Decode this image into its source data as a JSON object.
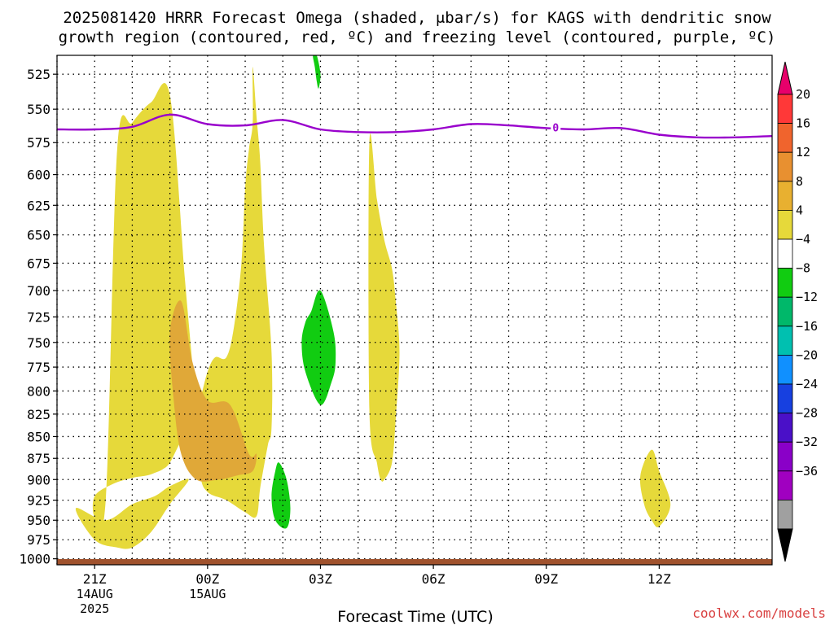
{
  "title_line1": "2025081420 HRRR Forecast Omega (shaded, μbar/s) for KAGS with dendritic snow",
  "title_line2": "growth region (contoured, red, ºC) and freezing level (contoured, purple, ºC)",
  "xlabel": "Forecast Time (UTC)",
  "credit": "coolwx.com/models",
  "freezing_contour_label": "0",
  "colors": {
    "background": "#ffffff",
    "freezing_line": "#9900cc",
    "ground": "#a0522d",
    "yellow_fill": "#e6d93a",
    "orange_fill": "#e0a838",
    "green_fill": "#11cc11",
    "grid": "#000000"
  },
  "chart_data": {
    "type": "contour",
    "variable": "Omega (μbar/s)",
    "y_axis": {
      "ticks": [
        525,
        550,
        575,
        600,
        625,
        650,
        675,
        700,
        725,
        750,
        775,
        800,
        825,
        850,
        875,
        900,
        925,
        950,
        975,
        1000
      ],
      "range": [
        512,
        1008
      ],
      "inverted": true,
      "scale": "log-pressure (hPa)"
    },
    "x_axis": {
      "range_hours": [
        -1.0,
        18.0
      ],
      "ticks": [
        {
          "h": 0,
          "label": "21Z",
          "date1": "14AUG",
          "date2": "2025"
        },
        {
          "h": 3,
          "label": "00Z",
          "date1": "15AUG",
          "date2": ""
        },
        {
          "h": 6,
          "label": "03Z",
          "date1": "",
          "date2": ""
        },
        {
          "h": 9,
          "label": "06Z",
          "date1": "",
          "date2": ""
        },
        {
          "h": 12,
          "label": "09Z",
          "date1": "",
          "date2": ""
        },
        {
          "h": 15,
          "label": "12Z",
          "date1": "",
          "date2": ""
        }
      ],
      "minor_grid_hours": [
        -1,
        1,
        2,
        4,
        5,
        7,
        8,
        10,
        11,
        13,
        14,
        16,
        17
      ]
    },
    "grid": true,
    "colorbar": {
      "levels": [
        "20",
        "16",
        "12",
        "8",
        "4",
        "−4",
        "−8",
        "−12",
        "−16",
        "−20",
        "−24",
        "−28",
        "−32",
        "−36"
      ],
      "bands": [
        "#e8006b",
        "#ff3838",
        "#f0642d",
        "#e89030",
        "#e8b030",
        "#e6d93a",
        "#ffffff",
        "#11cc11",
        "#00b86a",
        "#00c0b0",
        "#1090ff",
        "#1740e0",
        "#4a10c8",
        "#8a00c8",
        "#a000c0",
        "#a0a0a0",
        "#000000"
      ]
    },
    "freezing_level_0C": {
      "x_hours": [
        -1.0,
        0.0,
        1.0,
        2.0,
        3.0,
        4.0,
        5.0,
        6.0,
        7.0,
        8.0,
        9.0,
        10.0,
        11.0,
        12.0,
        13.0,
        14.0,
        15.0,
        16.0,
        17.0,
        18.0
      ],
      "pressure_hPa": [
        565,
        565,
        563,
        554,
        561,
        562,
        558,
        565,
        567,
        567,
        565,
        561,
        562,
        564,
        565,
        564,
        569,
        571,
        571,
        570
      ]
    },
    "omega_regions": [
      {
        "level": "4 to 8",
        "x_hours": [
          0.0,
          0.5,
          1.0,
          1.4,
          1.6,
          1.8,
          2.0,
          2.3,
          2.6,
          2.8,
          3.0,
          3.2,
          3.5,
          3.7,
          3.9,
          4.0,
          4.1,
          4.2,
          4.2,
          4.3,
          4.4,
          4.5,
          4.7,
          4.7,
          4.6,
          4.4,
          4.3,
          4.0,
          3.5,
          3.0,
          2.8,
          2.7,
          2.4,
          2.0,
          1.5,
          1.0,
          0.6,
          0.3,
          0.0
        ],
        "pressure_hPa": [
          920,
          905,
          898,
          895,
          892,
          888,
          880,
          855,
          840,
          810,
          780,
          765,
          765,
          735,
          675,
          610,
          580,
          560,
          520,
          555,
          590,
          660,
          760,
          840,
          860,
          910,
          945,
          940,
          925,
          915,
          892,
          820,
          690,
          540,
          545,
          560,
          580,
          920,
          945
        ]
      },
      {
        "level": "4 to 8",
        "x_hours": [
          -0.5,
          0.0,
          0.6,
          1.0,
          1.5,
          2.0,
          2.5,
          2.0,
          1.6,
          1.0,
          0.3
        ],
        "pressure_hPa": [
          935,
          975,
          985,
          985,
          965,
          930,
          900,
          908,
          920,
          930,
          950
        ]
      },
      {
        "level": "4 to 8",
        "x_hours": [
          7.3,
          7.5,
          7.7,
          7.9,
          8.0,
          8.1,
          8.0,
          7.9,
          7.7,
          7.6,
          7.5,
          7.3
        ],
        "pressure_hPa": [
          575,
          620,
          655,
          680,
          710,
          760,
          830,
          880,
          900,
          900,
          880,
          820
        ]
      },
      {
        "level": "4 to 8",
        "x_hours": [
          14.8,
          15.0,
          15.3,
          15.0,
          14.8,
          14.6,
          14.5
        ],
        "pressure_hPa": [
          865,
          890,
          930,
          958,
          950,
          930,
          895
        ]
      },
      {
        "level": "8 to 12",
        "x_hours": [
          2.0,
          2.3,
          2.6,
          3.0,
          3.6,
          4.1,
          4.3,
          4.2,
          3.8,
          3.3,
          2.7,
          2.3,
          2.1
        ],
        "pressure_hPa": [
          740,
          710,
          770,
          810,
          815,
          870,
          870,
          890,
          895,
          900,
          900,
          870,
          810
        ]
      },
      {
        "level": "-8 to -4",
        "x_hours": [
          5.75,
          6.0,
          6.35,
          6.4,
          6.3,
          6.0,
          5.6,
          5.5,
          5.6
        ],
        "pressure_hPa": [
          720,
          700,
          740,
          770,
          790,
          815,
          780,
          750,
          730
        ]
      },
      {
        "level": "-8 to -4",
        "x_hours": [
          4.9,
          5.1,
          5.2,
          5.1,
          4.8,
          4.7,
          4.8
        ],
        "pressure_hPa": [
          880,
          900,
          935,
          960,
          950,
          920,
          890
        ]
      },
      {
        "level": "-8 to -4",
        "x_hours": [
          5.8,
          5.9,
          6.0,
          5.95,
          5.9,
          5.85
        ],
        "pressure_hPa": [
          512,
          512,
          525,
          535,
          530,
          520
        ]
      }
    ]
  }
}
